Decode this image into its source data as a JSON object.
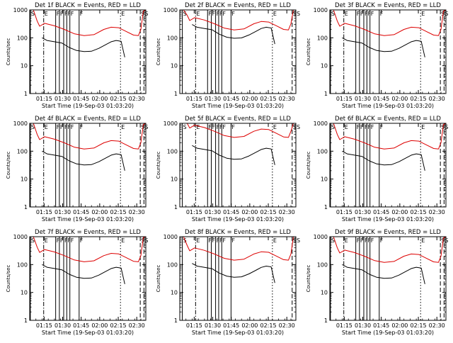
{
  "figure": {
    "panels": [
      {
        "title": "Det 1f BLACK = Events, RED = LLD",
        "xlabel": "Start Time (19-Sep-03 01:03:20)",
        "ylabel": "Counts/sec"
      },
      {
        "title": "Det 2f BLACK = Events, RED = LLD",
        "xlabel": "Start Time (19-Sep-03 01:03:20)",
        "ylabel": "Counts/sec"
      },
      {
        "title": "Det 3f BLACK = Events, RED = LLD",
        "xlabel": "Start Time (19-Sep-03 01:03:20)",
        "ylabel": "Counts/sec"
      },
      {
        "title": "Det 4f BLACK = Events, RED = LLD",
        "xlabel": "Start Time (19-Sep-03 01:03:20)",
        "ylabel": "Counts/sec"
      },
      {
        "title": "Det 5f BLACK = Events, RED = LLD",
        "xlabel": "Start Time (19-Sep-03 01:03:20)",
        "ylabel": "Counts/sec"
      },
      {
        "title": "Det 6f BLACK = Events, RED = LLD",
        "xlabel": "Start Time (19-Sep-03 01:03:20)",
        "ylabel": "Counts/sec"
      },
      {
        "title": "Det 7f BLACK = Events, RED = LLD",
        "xlabel": "Start Time (19-Sep-03 01:03:20)",
        "ylabel": "Counts/sec"
      },
      {
        "title": "Det 8f BLACK = Events, RED = LLD",
        "xlabel": "Start Time (19-Sep-03 01:03:20)",
        "ylabel": "Counts/sec"
      },
      {
        "title": "Det 9f BLACK = Events, RED = LLD",
        "xlabel": "Start Time (19-Sep-03 01:03:20)",
        "ylabel": "Counts/sec"
      }
    ],
    "colors": {
      "events": "#000000",
      "lld": "#dd0000",
      "axis": "#000000",
      "background": "#ffffff"
    }
  },
  "chart_data": {
    "type": "line",
    "layout": "3x3 grid",
    "yscale": "log",
    "ylim": [
      1,
      1000
    ],
    "yticks": [
      1,
      10,
      100,
      1000
    ],
    "ytick_labels": [
      "1",
      "10",
      "100",
      "1000"
    ],
    "xlim_minutes": [
      0,
      94
    ],
    "xticks_minutes": [
      11.67,
      26.67,
      41.67,
      56.67,
      71.67,
      86.67
    ],
    "xtick_labels": [
      "01:15",
      "01:30",
      "01:45",
      "02:00",
      "02:15",
      "02:30"
    ],
    "event_markers": [
      {
        "label": "S",
        "minute": 0.5,
        "style": "solid"
      },
      {
        "label": "E",
        "minute": 11.3,
        "style": "dashdot"
      },
      {
        "label": "F",
        "minute": 21.0,
        "style": "solid"
      },
      {
        "label": "F",
        "minute": 24.0,
        "style": "solid"
      },
      {
        "label": "F",
        "minute": 27.5,
        "style": "solid"
      },
      {
        "label": "F",
        "minute": 30.0,
        "style": "solid"
      },
      {
        "label": "F",
        "minute": 32.5,
        "style": "solid"
      },
      {
        "label": "F",
        "minute": 40.0,
        "style": "solid"
      },
      {
        "label": "E",
        "minute": 73.5,
        "style": "dotted"
      },
      {
        "label": "S",
        "minute": 89.5,
        "style": "dashed"
      },
      {
        "label": "S",
        "minute": 92.5,
        "style": "dashed"
      }
    ],
    "series": [
      {
        "name": "Events",
        "color": "#000000",
        "x": [
          10,
          14,
          20,
          26,
          32,
          38,
          44,
          50,
          56,
          62,
          66,
          70,
          74,
          77
        ],
        "y": [
          100,
          80,
          72,
          65,
          45,
          35,
          32,
          33,
          42,
          58,
          72,
          80,
          75,
          20
        ]
      },
      {
        "name": "LLD",
        "color": "#dd0000",
        "x": [
          0,
          3,
          6,
          8,
          12,
          20,
          28,
          36,
          44,
          52,
          60,
          66,
          72,
          78,
          84,
          88,
          90,
          92,
          94
        ],
        "y": [
          1000,
          1000,
          400,
          260,
          330,
          270,
          200,
          140,
          120,
          130,
          200,
          240,
          230,
          170,
          125,
          120,
          200,
          900,
          1000
        ]
      }
    ],
    "panels": [
      "Det 1f",
      "Det 2f",
      "Det 3f",
      "Det 4f",
      "Det 5f",
      "Det 6f",
      "Det 7f",
      "Det 8f",
      "Det 9f"
    ]
  }
}
